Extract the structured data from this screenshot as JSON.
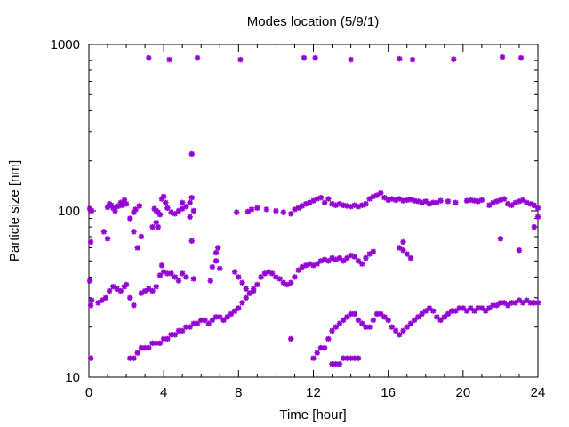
{
  "chart_data": {
    "type": "scatter",
    "title": "Modes location (5/9/1)",
    "xlabel": "Time [hour]",
    "ylabel": "Particle size [nm]",
    "xlim": [
      0,
      24
    ],
    "ylim": [
      10,
      1000
    ],
    "yscale": "log",
    "xticks": [
      0,
      4,
      8,
      12,
      16,
      20,
      24
    ],
    "xtick_labels": [
      "0",
      "4",
      "8",
      "12",
      "16",
      "20",
      "24"
    ],
    "yticks": [
      10,
      100,
      1000
    ],
    "ytick_labels": [
      "10",
      "100",
      "1000"
    ],
    "grid": false,
    "legend": "none",
    "marker_color": "#9400d3",
    "series": [
      {
        "mode": "accumulation",
        "points": [
          [
            0.05,
            103
          ],
          [
            0.15,
            100
          ],
          [
            1.0,
            105
          ],
          [
            1.1,
            110
          ],
          [
            1.2,
            108
          ],
          [
            1.3,
            104
          ],
          [
            1.4,
            100
          ],
          [
            1.5,
            106
          ],
          [
            1.6,
            107
          ],
          [
            1.7,
            112
          ],
          [
            1.8,
            108
          ],
          [
            1.9,
            116
          ],
          [
            2.0,
            110
          ],
          [
            2.2,
            90
          ],
          [
            2.4,
            98
          ],
          [
            2.5,
            102
          ],
          [
            2.7,
            107
          ],
          [
            3.5,
            103
          ],
          [
            3.6,
            100
          ],
          [
            3.7,
            98
          ],
          [
            3.8,
            95
          ],
          [
            3.9,
            118
          ],
          [
            4.0,
            122
          ],
          [
            4.1,
            112
          ],
          [
            4.2,
            104
          ],
          [
            4.4,
            98
          ],
          [
            4.6,
            96
          ],
          [
            4.8,
            100
          ],
          [
            5.0,
            103
          ],
          [
            5.2,
            106
          ],
          [
            5.4,
            112
          ],
          [
            5.5,
            120
          ],
          [
            5.6,
            100
          ],
          [
            7.9,
            98
          ],
          [
            8.5,
            99
          ],
          [
            8.7,
            102
          ],
          [
            9.0,
            104
          ],
          [
            9.5,
            102
          ],
          [
            10.0,
            100
          ],
          [
            10.4,
            98
          ],
          [
            10.8,
            96
          ],
          [
            11.0,
            102
          ],
          [
            11.2,
            104
          ],
          [
            11.4,
            107
          ],
          [
            11.6,
            110
          ],
          [
            11.8,
            112
          ],
          [
            12.0,
            115
          ],
          [
            12.2,
            118
          ],
          [
            12.4,
            120
          ],
          [
            12.6,
            112
          ],
          [
            12.8,
            118
          ],
          [
            13.0,
            110
          ],
          [
            13.2,
            108
          ],
          [
            13.4,
            110
          ],
          [
            13.6,
            108
          ],
          [
            13.8,
            107
          ],
          [
            14.0,
            106
          ],
          [
            14.2,
            108
          ],
          [
            14.4,
            106
          ],
          [
            14.6,
            108
          ],
          [
            14.8,
            110
          ],
          [
            15.0,
            118
          ],
          [
            15.2,
            122
          ],
          [
            15.4,
            124
          ],
          [
            15.6,
            128
          ],
          [
            15.8,
            120
          ],
          [
            16.0,
            116
          ],
          [
            16.2,
            118
          ],
          [
            16.4,
            116
          ],
          [
            16.6,
            118
          ],
          [
            16.8,
            115
          ],
          [
            17.0,
            116
          ],
          [
            17.2,
            117
          ],
          [
            17.4,
            115
          ],
          [
            17.6,
            114
          ],
          [
            17.8,
            112
          ],
          [
            18.0,
            114
          ],
          [
            18.2,
            110
          ],
          [
            18.4,
            112
          ],
          [
            18.6,
            112
          ],
          [
            18.8,
            115
          ],
          [
            19.2,
            114
          ],
          [
            19.6,
            112
          ],
          [
            20.2,
            115
          ],
          [
            20.4,
            116
          ],
          [
            20.6,
            115
          ],
          [
            20.8,
            114
          ],
          [
            21.0,
            116
          ],
          [
            21.4,
            108
          ],
          [
            21.6,
            112
          ],
          [
            21.8,
            114
          ],
          [
            22.0,
            116
          ],
          [
            22.2,
            118
          ],
          [
            22.4,
            110
          ],
          [
            22.6,
            108
          ],
          [
            22.8,
            112
          ],
          [
            23.0,
            114
          ],
          [
            23.2,
            116
          ],
          [
            23.4,
            112
          ],
          [
            23.6,
            110
          ],
          [
            23.8,
            108
          ],
          [
            24.0,
            104
          ]
        ]
      },
      {
        "mode": "aitken",
        "points": [
          [
            0.05,
            38
          ],
          [
            0.1,
            27
          ],
          [
            0.15,
            29
          ],
          [
            0.5,
            28
          ],
          [
            0.7,
            29
          ],
          [
            0.9,
            30
          ],
          [
            1.1,
            33
          ],
          [
            1.3,
            35
          ],
          [
            1.5,
            34
          ],
          [
            1.7,
            33
          ],
          [
            1.9,
            35
          ],
          [
            2.0,
            36
          ],
          [
            2.2,
            30
          ],
          [
            2.4,
            27
          ],
          [
            2.8,
            32
          ],
          [
            3.0,
            33
          ],
          [
            3.2,
            34
          ],
          [
            3.4,
            33
          ],
          [
            3.6,
            35
          ],
          [
            3.8,
            41
          ],
          [
            3.9,
            47
          ],
          [
            4.0,
            43
          ],
          [
            4.2,
            42
          ],
          [
            4.4,
            42
          ],
          [
            4.6,
            40
          ],
          [
            4.8,
            38
          ],
          [
            5.0,
            42
          ],
          [
            5.2,
            40
          ],
          [
            5.6,
            39
          ],
          [
            6.5,
            38
          ],
          [
            6.6,
            46
          ],
          [
            6.8,
            56
          ],
          [
            6.9,
            60
          ],
          [
            7.8,
            43
          ],
          [
            8.0,
            40
          ],
          [
            8.2,
            37
          ],
          [
            8.4,
            34
          ],
          [
            8.6,
            32
          ],
          [
            8.8,
            33
          ],
          [
            9.0,
            36
          ],
          [
            9.2,
            40
          ],
          [
            9.4,
            42
          ],
          [
            9.6,
            43
          ],
          [
            9.8,
            42
          ],
          [
            10.0,
            40
          ],
          [
            10.2,
            39
          ],
          [
            10.4,
            37
          ],
          [
            10.6,
            36
          ],
          [
            10.8,
            37
          ],
          [
            11.0,
            40
          ],
          [
            11.2,
            44
          ],
          [
            11.4,
            46
          ],
          [
            11.6,
            47
          ],
          [
            11.8,
            48
          ],
          [
            12.0,
            47
          ],
          [
            12.2,
            48
          ],
          [
            12.4,
            50
          ],
          [
            12.6,
            51
          ],
          [
            12.8,
            50
          ],
          [
            13.0,
            52
          ],
          [
            13.2,
            51
          ],
          [
            13.4,
            52
          ],
          [
            13.6,
            50
          ],
          [
            13.8,
            52
          ],
          [
            14.0,
            54
          ],
          [
            14.2,
            53
          ],
          [
            14.4,
            50
          ],
          [
            14.6,
            48
          ],
          [
            14.8,
            52
          ],
          [
            15.0,
            55
          ],
          [
            15.2,
            57
          ],
          [
            16.6,
            60
          ],
          [
            16.8,
            58
          ],
          [
            17.0,
            55
          ],
          [
            17.2,
            52
          ]
        ]
      },
      {
        "mode": "nucleation",
        "points": [
          [
            0.1,
            13
          ],
          [
            2.2,
            13
          ],
          [
            2.4,
            13
          ],
          [
            2.6,
            14
          ],
          [
            2.8,
            15
          ],
          [
            3.0,
            15
          ],
          [
            3.2,
            15
          ],
          [
            3.4,
            16
          ],
          [
            3.6,
            16
          ],
          [
            3.8,
            16
          ],
          [
            4.0,
            17
          ],
          [
            4.2,
            17
          ],
          [
            4.4,
            18
          ],
          [
            4.6,
            18
          ],
          [
            4.8,
            19
          ],
          [
            5.0,
            19
          ],
          [
            5.2,
            20
          ],
          [
            5.4,
            20
          ],
          [
            5.6,
            21
          ],
          [
            5.8,
            21
          ],
          [
            6.0,
            22
          ],
          [
            6.2,
            22
          ],
          [
            6.4,
            21
          ],
          [
            6.6,
            22
          ],
          [
            6.8,
            23
          ],
          [
            7.0,
            23
          ],
          [
            7.2,
            22
          ],
          [
            7.4,
            23
          ],
          [
            7.6,
            24
          ],
          [
            7.8,
            25
          ],
          [
            8.0,
            26
          ],
          [
            8.2,
            28
          ],
          [
            8.4,
            30
          ],
          [
            8.6,
            32
          ],
          [
            8.8,
            34
          ],
          [
            12.0,
            13
          ],
          [
            12.2,
            14
          ],
          [
            12.4,
            15
          ],
          [
            12.6,
            15
          ],
          [
            12.8,
            17
          ],
          [
            13.0,
            19
          ],
          [
            13.2,
            20
          ],
          [
            13.4,
            21
          ],
          [
            13.6,
            22
          ],
          [
            13.8,
            23
          ],
          [
            14.0,
            24
          ],
          [
            14.2,
            24
          ],
          [
            14.4,
            22
          ],
          [
            14.6,
            21
          ],
          [
            14.8,
            20
          ],
          [
            15.0,
            20
          ],
          [
            15.2,
            22
          ],
          [
            15.4,
            24
          ],
          [
            15.6,
            24
          ],
          [
            15.8,
            23
          ],
          [
            16.0,
            22
          ],
          [
            16.2,
            20
          ],
          [
            16.4,
            19
          ],
          [
            16.6,
            18
          ],
          [
            16.8,
            19
          ],
          [
            17.0,
            20
          ],
          [
            17.2,
            21
          ],
          [
            17.4,
            22
          ],
          [
            17.6,
            23
          ],
          [
            17.8,
            24
          ],
          [
            18.0,
            25
          ],
          [
            18.2,
            26
          ],
          [
            18.4,
            25
          ],
          [
            18.6,
            23
          ],
          [
            18.8,
            22
          ],
          [
            19.0,
            23
          ],
          [
            19.2,
            24
          ],
          [
            19.4,
            25
          ],
          [
            19.6,
            25
          ],
          [
            19.8,
            26
          ],
          [
            20.0,
            26
          ],
          [
            20.2,
            25
          ],
          [
            20.4,
            26
          ],
          [
            20.6,
            25
          ],
          [
            20.8,
            26
          ],
          [
            21.0,
            26
          ],
          [
            21.2,
            25
          ],
          [
            21.4,
            26
          ],
          [
            21.6,
            27
          ],
          [
            21.8,
            27
          ],
          [
            22.0,
            28
          ],
          [
            22.2,
            28
          ],
          [
            22.4,
            27
          ],
          [
            22.6,
            28
          ],
          [
            22.8,
            28
          ],
          [
            23.0,
            29
          ],
          [
            23.2,
            28
          ],
          [
            23.4,
            29
          ],
          [
            23.6,
            28
          ],
          [
            23.8,
            28
          ],
          [
            24.0,
            28
          ],
          [
            13.0,
            12
          ],
          [
            13.2,
            12
          ],
          [
            13.4,
            12
          ],
          [
            13.6,
            13
          ],
          [
            13.8,
            13
          ],
          [
            14.0,
            13
          ],
          [
            14.2,
            13
          ],
          [
            14.4,
            13
          ]
        ]
      },
      {
        "mode": "outliers",
        "points": [
          [
            0.1,
            65
          ],
          [
            0.8,
            75
          ],
          [
            1.0,
            68
          ],
          [
            2.4,
            75
          ],
          [
            2.6,
            60
          ],
          [
            2.8,
            70
          ],
          [
            3.4,
            80
          ],
          [
            3.6,
            85
          ],
          [
            3.7,
            80
          ],
          [
            5.0,
            112
          ],
          [
            5.4,
            92
          ],
          [
            5.5,
            66
          ],
          [
            5.5,
            220
          ],
          [
            6.8,
            50
          ],
          [
            7.0,
            45
          ],
          [
            10.8,
            17
          ],
          [
            16.8,
            65
          ],
          [
            22.0,
            68
          ],
          [
            23.0,
            58
          ],
          [
            23.8,
            80
          ],
          [
            24.0,
            92
          ]
        ]
      },
      {
        "mode": "upper-boundary",
        "points": [
          [
            3.2,
            830
          ],
          [
            4.3,
            810
          ],
          [
            5.8,
            830
          ],
          [
            8.1,
            810
          ],
          [
            11.5,
            830
          ],
          [
            12.1,
            830
          ],
          [
            14.0,
            810
          ],
          [
            16.6,
            820
          ],
          [
            17.3,
            810
          ],
          [
            19.5,
            815
          ],
          [
            22.1,
            840
          ],
          [
            23.1,
            830
          ]
        ]
      }
    ]
  }
}
